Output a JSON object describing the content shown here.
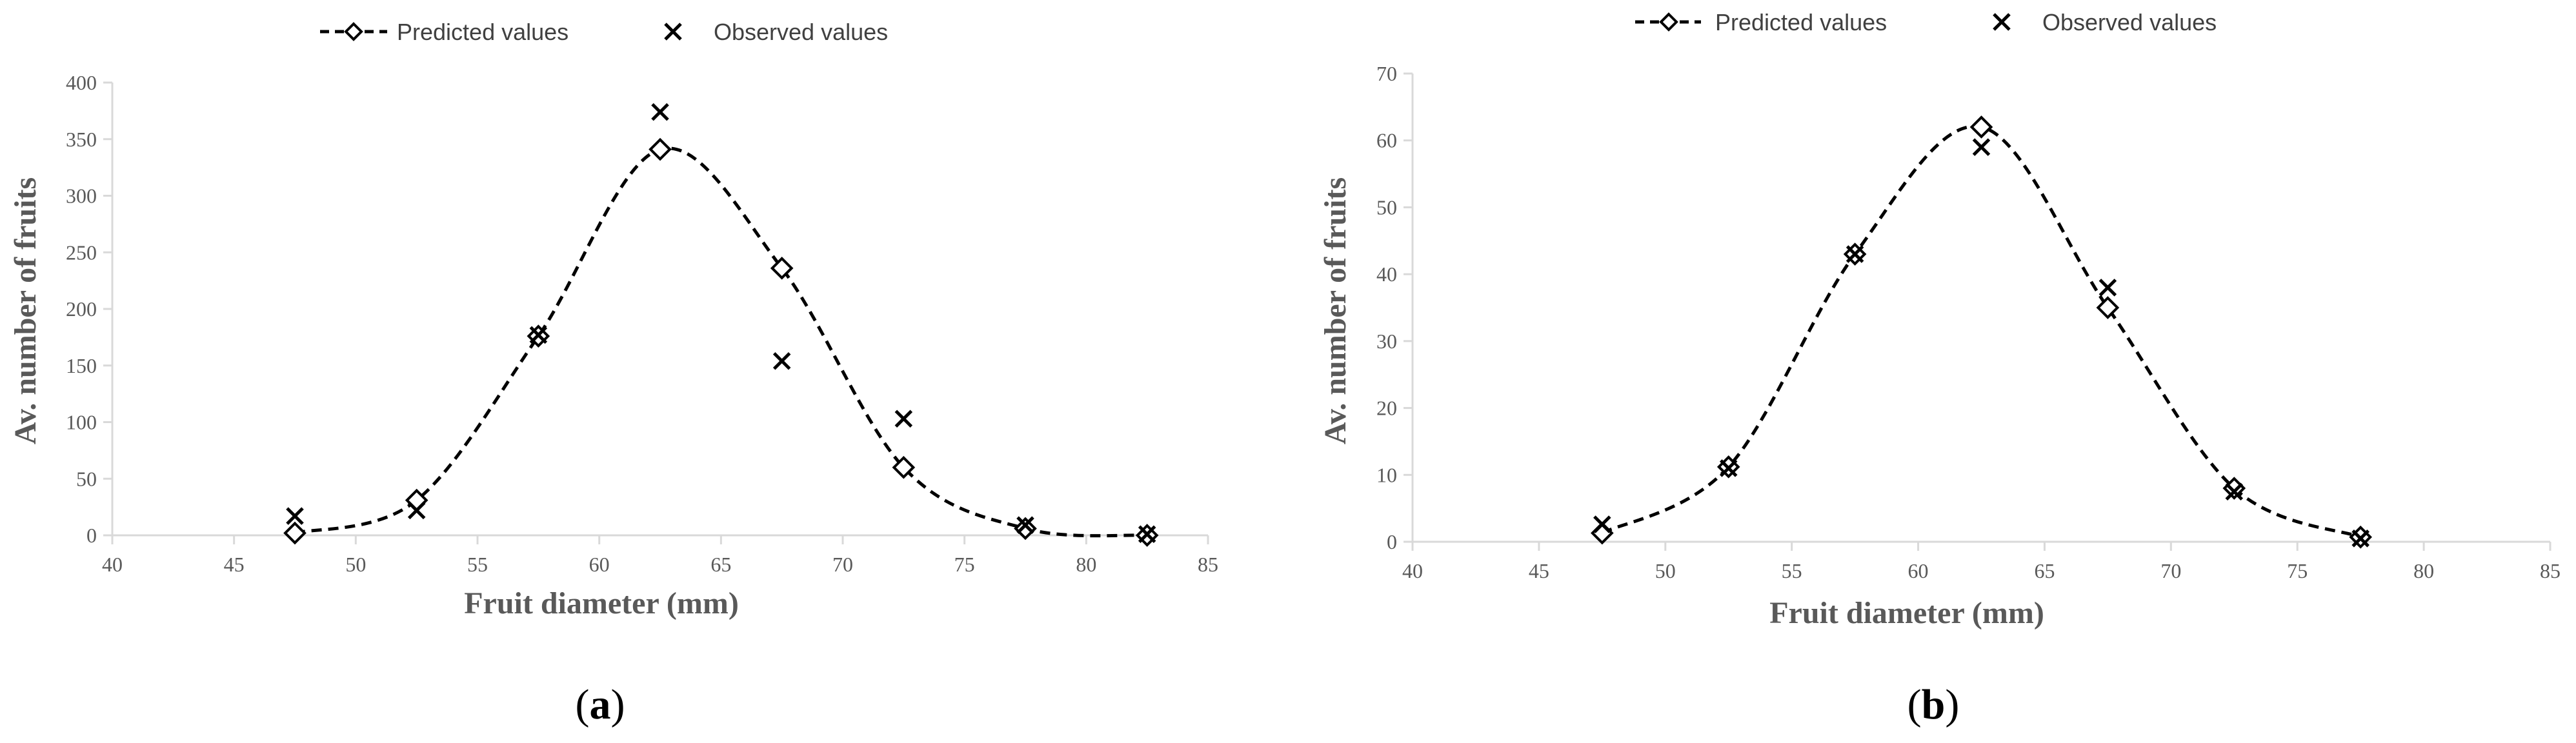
{
  "legend": {
    "predicted_label": "Predicted values",
    "observed_label": "Observed values"
  },
  "colors": {
    "marker": "#000000",
    "axis": "#d9d9d9",
    "text": "#595959"
  },
  "chart_data": [
    {
      "type": "scatter",
      "panel_label": "a",
      "title": "",
      "xlabel": "Fruit diameter (mm)",
      "ylabel": "Av. number of fruits",
      "xlim": [
        40,
        85
      ],
      "ylim": [
        0,
        400
      ],
      "xticks": [
        40,
        45,
        50,
        55,
        60,
        65,
        70,
        75,
        80,
        85
      ],
      "yticks": [
        0,
        50,
        100,
        150,
        200,
        250,
        300,
        350,
        400
      ],
      "grid": false,
      "legend_position": "top",
      "series": [
        {
          "name": "Predicted values",
          "marker": "diamond",
          "line": "dashed-smooth",
          "x": [
            47.5,
            52.5,
            57.5,
            62.5,
            67.5,
            72.5,
            77.5,
            82.5
          ],
          "y": [
            2,
            31,
            176,
            341,
            236,
            60,
            6,
            0
          ]
        },
        {
          "name": "Observed values",
          "marker": "x",
          "x": [
            47.5,
            52.5,
            57.5,
            62.5,
            67.5,
            72.5,
            77.5,
            82.5
          ],
          "y": [
            17,
            22,
            177,
            374,
            154,
            103,
            9,
            1
          ]
        }
      ]
    },
    {
      "type": "scatter",
      "panel_label": "b",
      "title": "",
      "xlabel": "Fruit diameter (mm)",
      "ylabel": "Av. number of fruits",
      "xlim": [
        40,
        85
      ],
      "ylim": [
        0,
        70
      ],
      "xticks": [
        40,
        45,
        50,
        55,
        60,
        65,
        70,
        75,
        80,
        85
      ],
      "yticks": [
        0,
        10,
        20,
        30,
        40,
        50,
        60,
        70
      ],
      "grid": false,
      "legend_position": "top",
      "series": [
        {
          "name": "Predicted values",
          "marker": "diamond",
          "line": "dashed-smooth",
          "x": [
            47.5,
            52.5,
            57.5,
            62.5,
            67.5,
            72.5,
            77.5
          ],
          "y": [
            1.3,
            11.2,
            43,
            62,
            35,
            8,
            0.7
          ]
        },
        {
          "name": "Observed values",
          "marker": "x",
          "x": [
            47.5,
            52.5,
            57.5,
            62.5,
            67.5,
            72.5,
            77.5
          ],
          "y": [
            2.6,
            11,
            43,
            59,
            38,
            7.5,
            0.5
          ]
        }
      ]
    }
  ]
}
